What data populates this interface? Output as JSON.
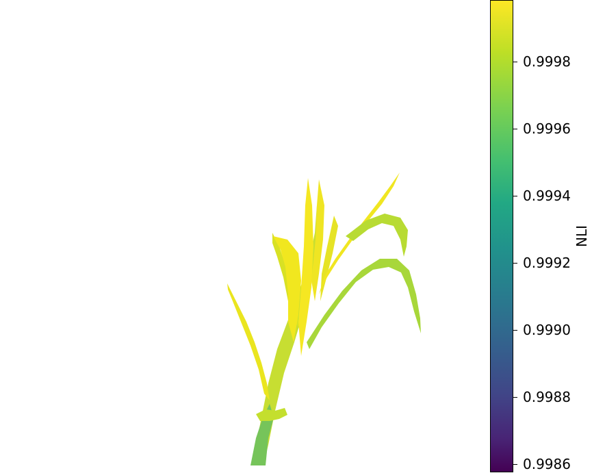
{
  "colorbar": {
    "label": "NLI",
    "colormap": "viridis",
    "range": [
      0.99855,
      0.99998
    ],
    "ticks": [
      {
        "value": 0.9998,
        "label": "0.9998"
      },
      {
        "value": 0.9996,
        "label": "0.9996"
      },
      {
        "value": 0.9994,
        "label": "0.9994"
      },
      {
        "value": 0.9992,
        "label": "0.9992"
      },
      {
        "value": 0.999,
        "label": "0.9990"
      },
      {
        "value": 0.9988,
        "label": "0.9988"
      },
      {
        "value": 0.9986,
        "label": "0.9986"
      }
    ]
  },
  "colors": {
    "dominant_plant": "#f0e624",
    "secondary_plant": "#a9d63c",
    "edge_plant": "#6cc65a",
    "background": "#ffffff"
  }
}
